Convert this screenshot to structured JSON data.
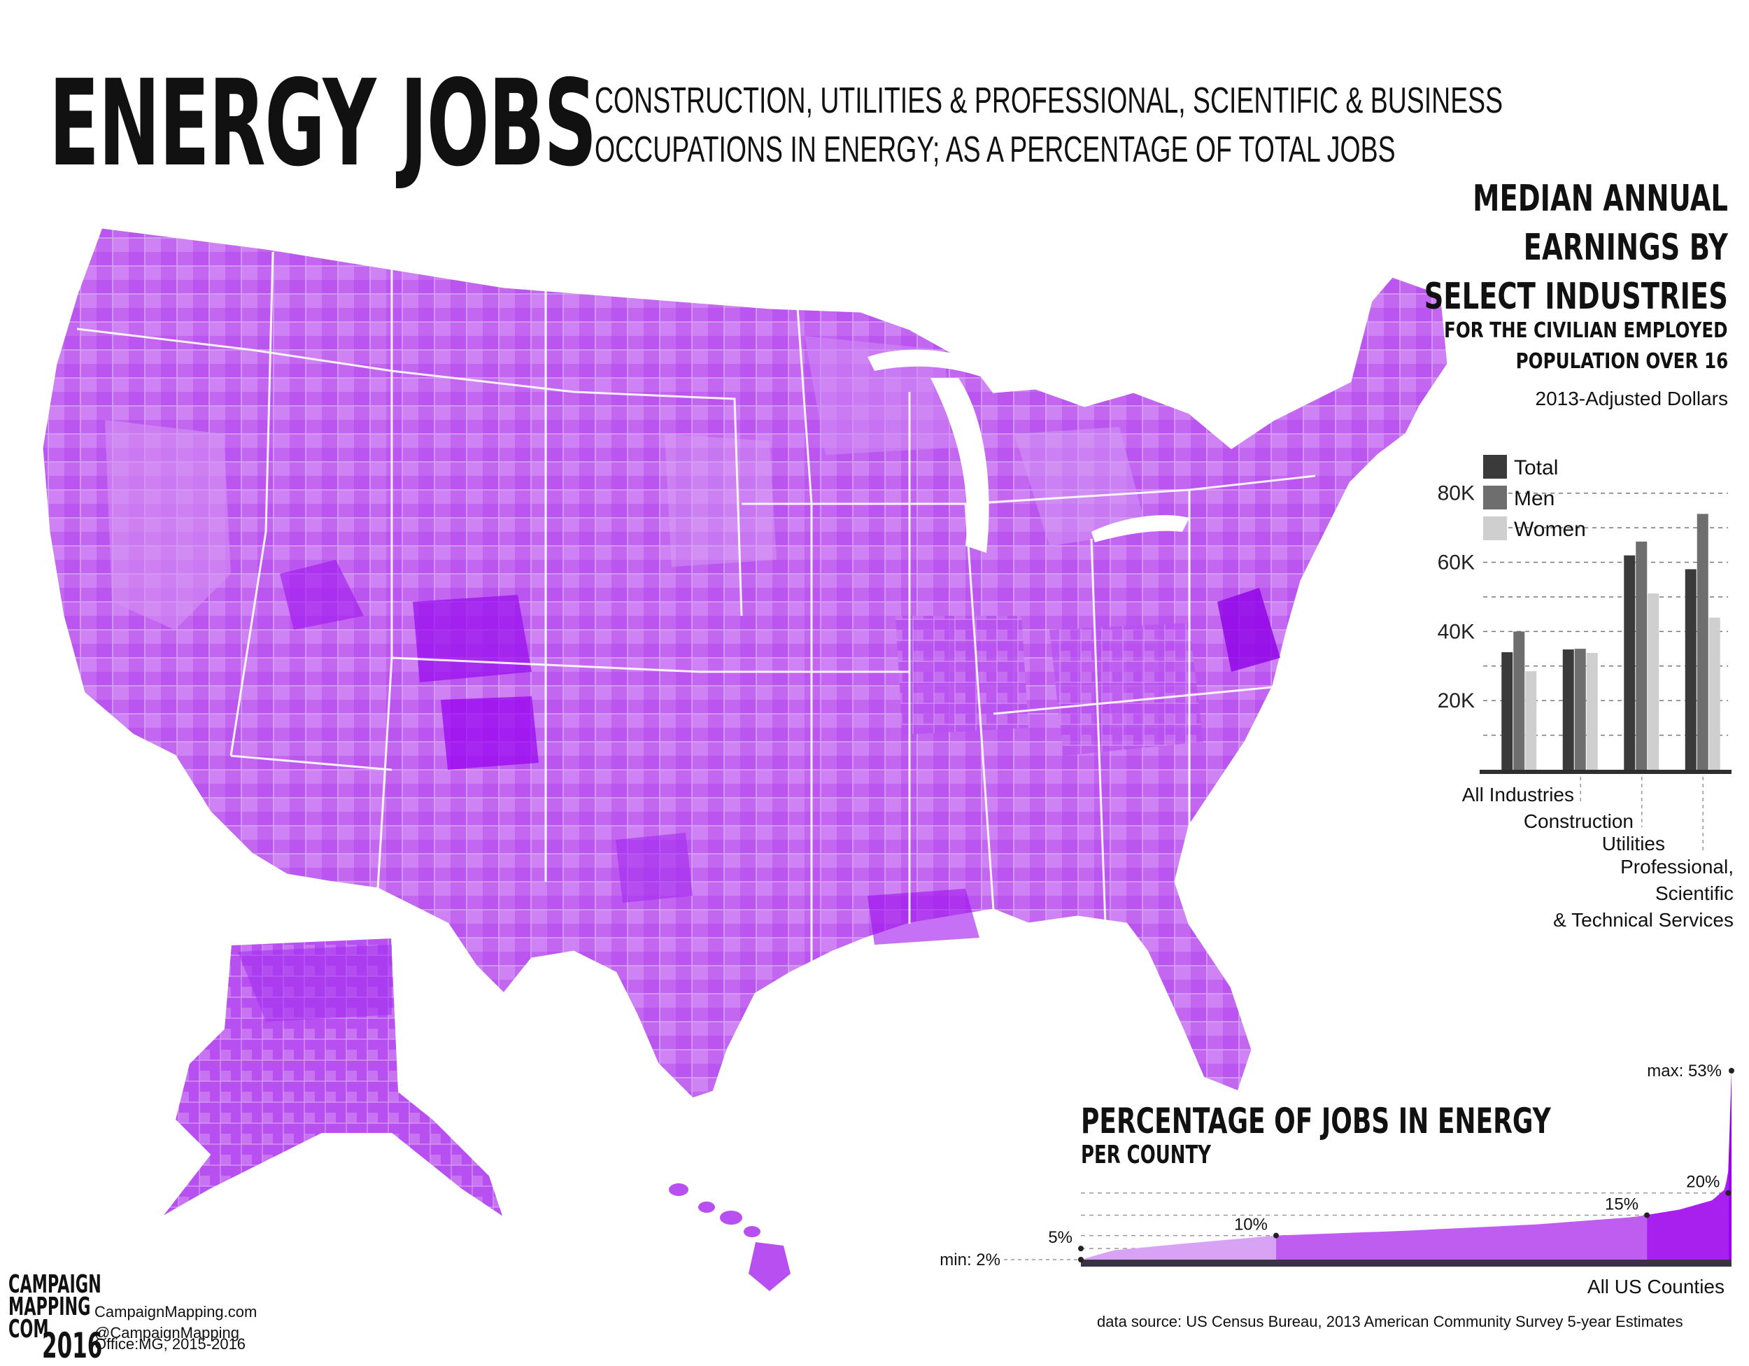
{
  "title": "ENERGY JOBS",
  "subtitle_lines": [
    "CONSTRUCTION, UTILITIES & PROFESSIONAL, SCIENTIFIC & BUSINESS",
    "OCCUPATIONS IN ENERGY; AS A PERCENTAGE OF TOTAL JOBS"
  ],
  "colors": {
    "map_light": "#d9a3f5",
    "map_mid": "#bf5df0",
    "map_dark": "#9b00ee",
    "bar_total": "#3a3a3a",
    "bar_men": "#6e6e6e",
    "bar_women": "#cfcfcf"
  },
  "credits": {
    "logo": [
      "CAMPAIGN",
      "MAPPING",
      "COM"
    ],
    "logo_year": "2016",
    "lines": [
      "CampaignMapping.com",
      "@CampaignMapping",
      "Office:MG, 2015-2016"
    ],
    "source": "data source: US Census Bureau, 2013 American Community Survey 5-year Estimates"
  },
  "chart_data": [
    {
      "type": "bar",
      "title_lines": [
        "MEDIAN ANNUAL",
        "EARNINGS BY",
        "SELECT INDUSTRIES"
      ],
      "subtitle_lines": [
        "FOR THE CIVILIAN EMPLOYED",
        "POPULATION OVER 16"
      ],
      "units_note": "2013-Adjusted Dollars",
      "categories": [
        "All Industries",
        "Construction",
        "Utilities",
        "Professional, Scientific & Technical Services"
      ],
      "category_label_lines": [
        [
          "All Industries"
        ],
        [
          "Construction"
        ],
        [
          "Utilities"
        ],
        [
          "Professional,",
          "Scientific",
          "& Technical Services"
        ]
      ],
      "series": [
        {
          "name": "Total",
          "values": [
            34000,
            34800,
            62000,
            58000
          ]
        },
        {
          "name": "Men",
          "values": [
            40000,
            35000,
            66000,
            74000
          ]
        },
        {
          "name": "Women",
          "values": [
            28500,
            33800,
            51000,
            44000
          ]
        }
      ],
      "yticks": [
        20000,
        40000,
        60000,
        80000
      ],
      "ytick_labels": [
        "20K",
        "40K",
        "60K",
        "80K"
      ],
      "ylim": [
        0,
        85000
      ],
      "legend": "top-left"
    },
    {
      "type": "area",
      "title": "PERCENTAGE OF JOBS IN ENERGY",
      "subtitle": "PER COUNTY",
      "xlabel": "All US Counties",
      "ylim": [
        2,
        53
      ],
      "min_label": "min: 2%",
      "max_label": "max: 53%",
      "markers": [
        {
          "label": "5%",
          "x": 0.0,
          "y": 5
        },
        {
          "label": "10%",
          "x": 0.3,
          "y": 8.5
        },
        {
          "label": "15%",
          "x": 0.87,
          "y": 14
        },
        {
          "label": "20%",
          "x": 0.995,
          "y": 20
        }
      ],
      "curve": [
        [
          0,
          2
        ],
        [
          0.05,
          4.5
        ],
        [
          0.15,
          6.2
        ],
        [
          0.3,
          8.5
        ],
        [
          0.5,
          9.8
        ],
        [
          0.7,
          11.5
        ],
        [
          0.85,
          13.5
        ],
        [
          0.92,
          15.5
        ],
        [
          0.97,
          18
        ],
        [
          0.99,
          21
        ],
        [
          0.995,
          26
        ],
        [
          1.0,
          53
        ]
      ],
      "bands": [
        {
          "from": 0,
          "to": 0.3,
          "color": "#d9a3f5"
        },
        {
          "from": 0.3,
          "to": 0.87,
          "color": "#bf5df0"
        },
        {
          "from": 0.87,
          "to": 0.995,
          "color": "#a820ee"
        },
        {
          "from": 0.995,
          "to": 1.0,
          "color": "#9b00ee"
        }
      ]
    }
  ]
}
